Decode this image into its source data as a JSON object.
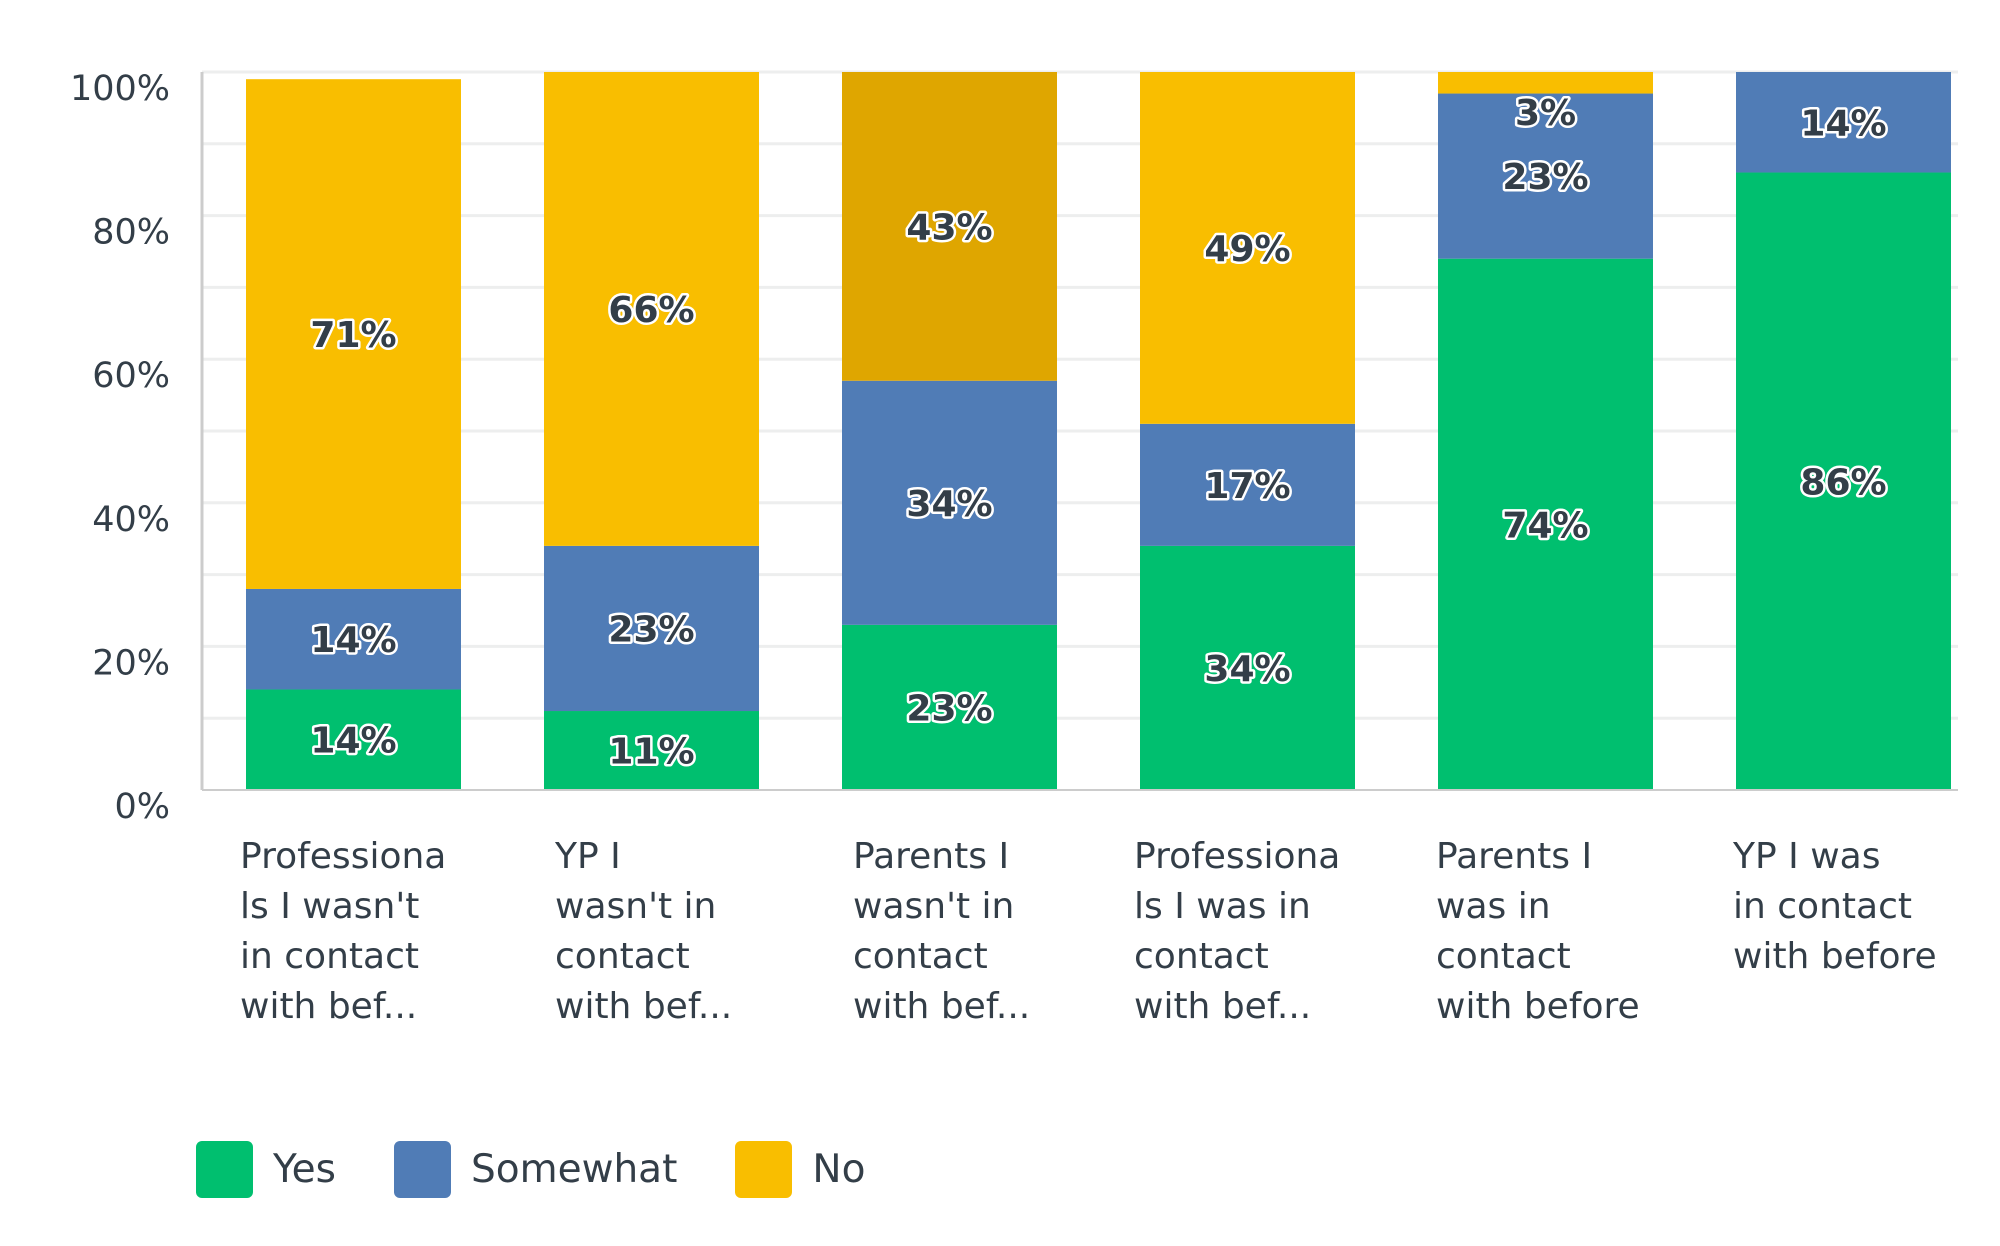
{
  "chart_data": {
    "type": "bar",
    "stacked": true,
    "title": "",
    "xlabel": "",
    "ylabel": "",
    "ylim": [
      0,
      100
    ],
    "yticks": [
      "0%",
      "20%",
      "40%",
      "60%",
      "80%",
      "100%"
    ],
    "grid": true,
    "legend_position": "bottom-left",
    "categories": [
      [
        "Professiona",
        "ls I wasn't",
        "in contact",
        "with bef..."
      ],
      [
        "YP I",
        "wasn't in",
        "contact",
        "with bef..."
      ],
      [
        "Parents I",
        "wasn't in",
        "contact",
        "with bef..."
      ],
      [
        "Professiona",
        "ls I was in",
        "contact",
        "with bef..."
      ],
      [
        "Parents I",
        "was in",
        "contact",
        "with before"
      ],
      [
        "YP I was",
        "in contact",
        "with before"
      ]
    ],
    "series": [
      {
        "name": "Yes",
        "color": "#00BF6F",
        "values": [
          14,
          11,
          23,
          34,
          74,
          86
        ],
        "labels": [
          "14%",
          "11%",
          "23%",
          "34%",
          "74%",
          "86%"
        ]
      },
      {
        "name": "Somewhat",
        "color": "#507CB6",
        "values": [
          14,
          23,
          34,
          17,
          23,
          14
        ],
        "labels": [
          "14%",
          "23%",
          "34%",
          "17%",
          "23%",
          "14%"
        ]
      },
      {
        "name": "No",
        "color": "#F9BE00",
        "values": [
          71,
          66,
          43,
          49,
          3,
          0
        ],
        "labels": [
          "71%",
          "66%",
          "43%",
          "49%",
          "3%",
          ""
        ]
      }
    ],
    "highlighted": {
      "series": 2,
      "category": 2,
      "color": "#DFA600"
    }
  }
}
